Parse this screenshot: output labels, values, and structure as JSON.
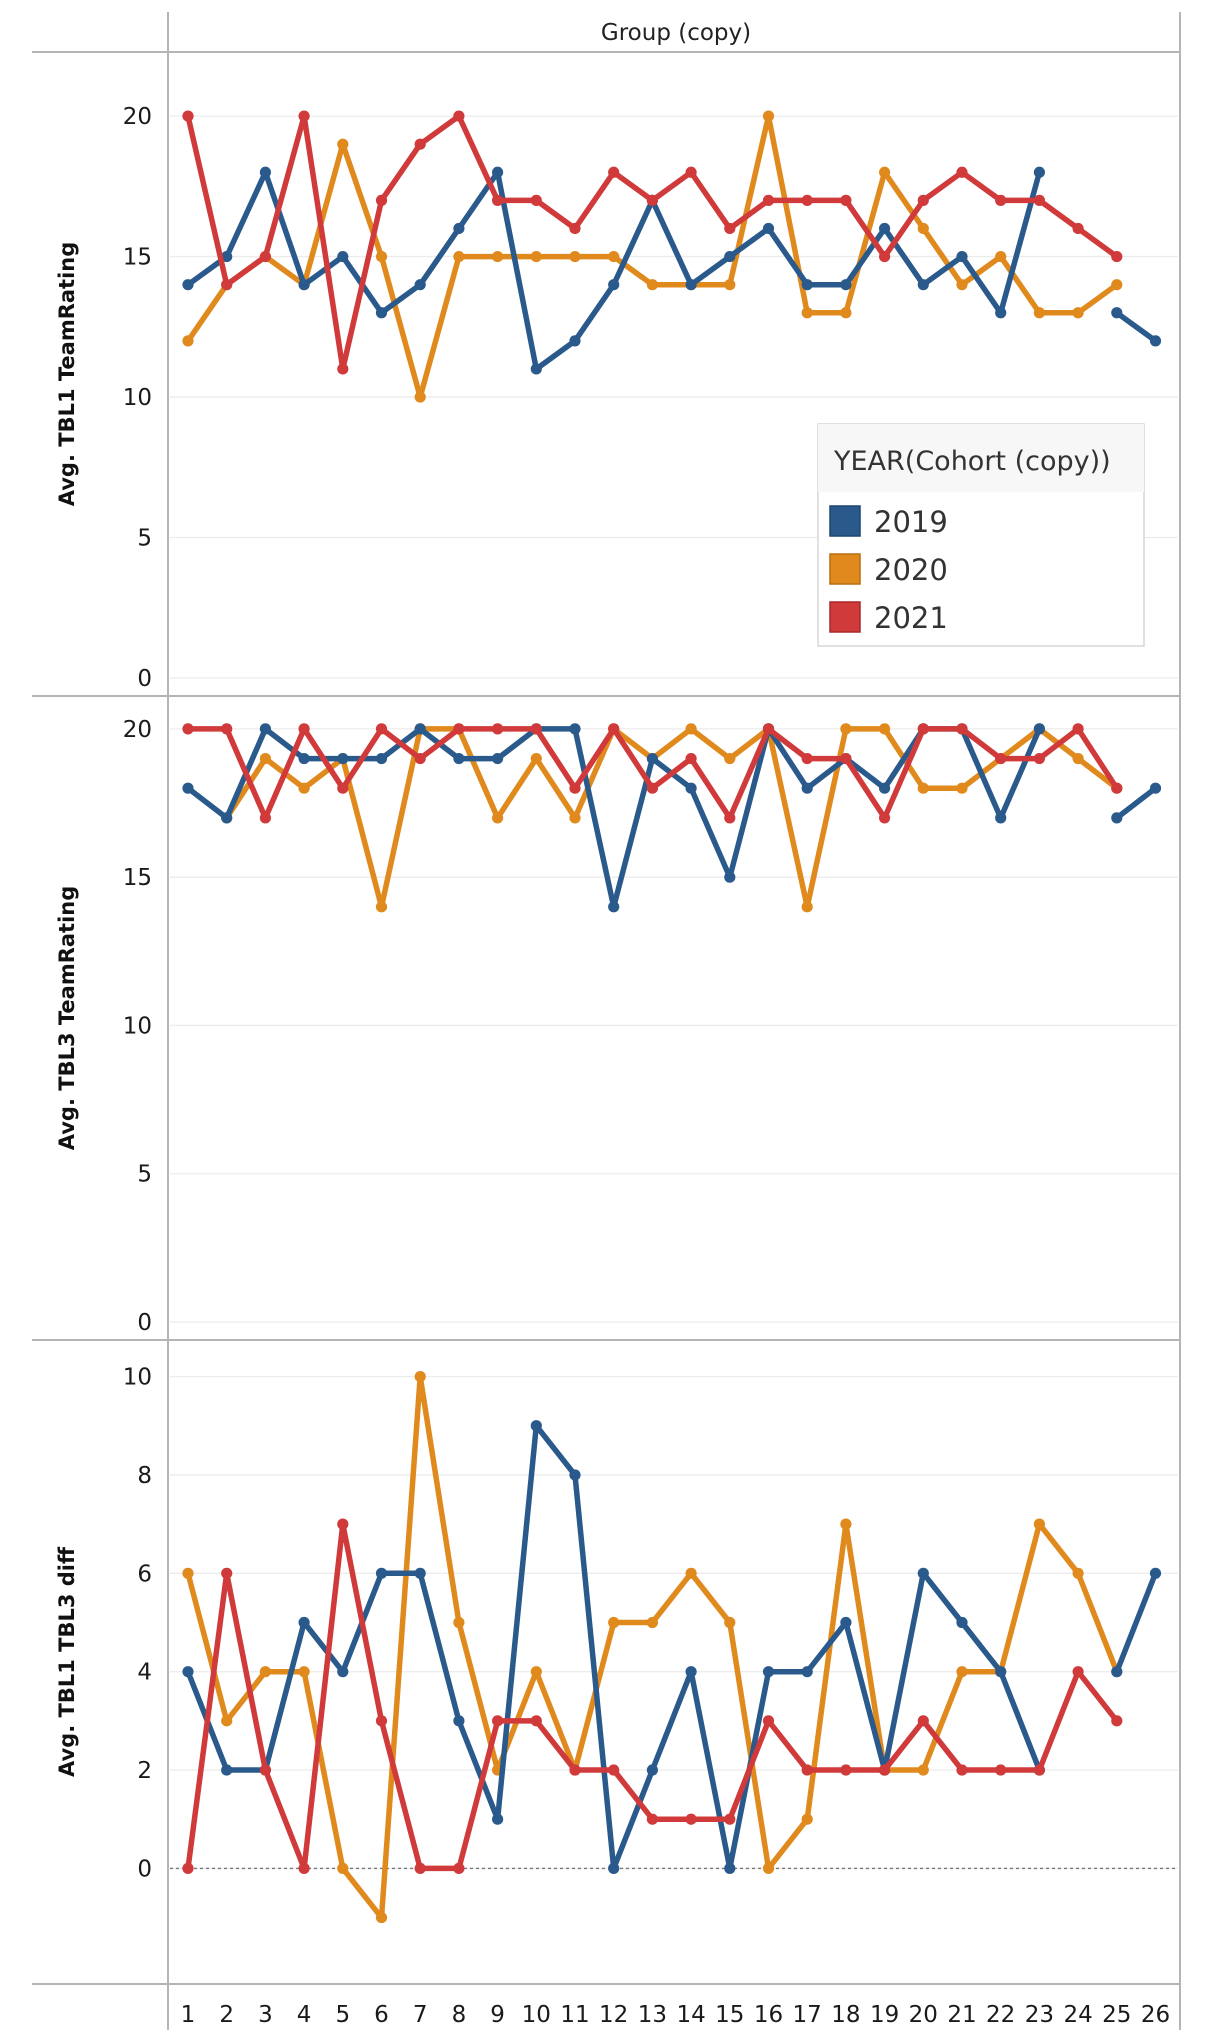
{
  "header": {
    "column_title": "Group (copy)"
  },
  "colors": {
    "2019": "#2a5a8c",
    "2020": "#e08a1e",
    "2021": "#d03a3a"
  },
  "chart_data": [
    {
      "type": "line",
      "ylabel": "Avg. TBL1 TeamRating",
      "ylim": [
        0,
        21
      ],
      "yticks": [
        0,
        5,
        10,
        15,
        20
      ],
      "x": [
        1,
        2,
        3,
        4,
        5,
        6,
        7,
        8,
        9,
        10,
        11,
        12,
        13,
        14,
        15,
        16,
        17,
        18,
        19,
        20,
        21,
        22,
        23,
        24,
        25,
        26
      ],
      "series": [
        {
          "name": "2019",
          "values": [
            14,
            15,
            18,
            14,
            15,
            13,
            14,
            16,
            18,
            11,
            12,
            14,
            17,
            14,
            15,
            16,
            14,
            14,
            16,
            14,
            15,
            13,
            18,
            null,
            13,
            12
          ]
        },
        {
          "name": "2020",
          "values": [
            12,
            14,
            15,
            14,
            19,
            15,
            10,
            15,
            15,
            15,
            15,
            15,
            14,
            14,
            14,
            20,
            13,
            13,
            18,
            16,
            14,
            15,
            13,
            13,
            14,
            null
          ]
        },
        {
          "name": "2021",
          "values": [
            20,
            14,
            15,
            20,
            11,
            17,
            19,
            20,
            17,
            17,
            16,
            18,
            17,
            18,
            16,
            17,
            17,
            17,
            15,
            17,
            18,
            17,
            17,
            16,
            15,
            null
          ]
        }
      ],
      "legend": {
        "title": "YEAR(Cohort (copy))",
        "entries": [
          "2019",
          "2020",
          "2021"
        ]
      }
    },
    {
      "type": "line",
      "ylabel": "Avg. TBL3 TeamRating",
      "ylim": [
        0,
        20.3
      ],
      "yticks": [
        0,
        5,
        10,
        15,
        20
      ],
      "x": [
        1,
        2,
        3,
        4,
        5,
        6,
        7,
        8,
        9,
        10,
        11,
        12,
        13,
        14,
        15,
        16,
        17,
        18,
        19,
        20,
        21,
        22,
        23,
        24,
        25,
        26
      ],
      "series": [
        {
          "name": "2019",
          "values": [
            18,
            17,
            20,
            19,
            19,
            19,
            20,
            19,
            19,
            20,
            20,
            14,
            19,
            18,
            15,
            20,
            18,
            19,
            18,
            20,
            20,
            17,
            20,
            null,
            17,
            18
          ]
        },
        {
          "name": "2020",
          "values": [
            null,
            17,
            19,
            18,
            19,
            14,
            20,
            20,
            17,
            19,
            17,
            20,
            19,
            20,
            19,
            20,
            14,
            20,
            20,
            18,
            18,
            19,
            20,
            19,
            18,
            null
          ]
        },
        {
          "name": "2021",
          "values": [
            20,
            20,
            17,
            20,
            18,
            20,
            19,
            20,
            20,
            20,
            18,
            20,
            18,
            19,
            17,
            20,
            19,
            19,
            17,
            20,
            20,
            19,
            19,
            20,
            18,
            null
          ]
        }
      ]
    },
    {
      "type": "line",
      "ylabel": "Avg. TBL1 TBL3 diff",
      "ylim": [
        -1.7,
        10.5
      ],
      "yticks": [
        0,
        2,
        4,
        6,
        8,
        10
      ],
      "zero_line": true,
      "x": [
        1,
        2,
        3,
        4,
        5,
        6,
        7,
        8,
        9,
        10,
        11,
        12,
        13,
        14,
        15,
        16,
        17,
        18,
        19,
        20,
        21,
        22,
        23,
        24,
        25,
        26
      ],
      "series": [
        {
          "name": "2019",
          "values": [
            4,
            2,
            2,
            5,
            4,
            6,
            6,
            3,
            1,
            9,
            8,
            0,
            2,
            4,
            0,
            4,
            4,
            5,
            2,
            6,
            5,
            4,
            2,
            null,
            4,
            6
          ]
        },
        {
          "name": "2020",
          "values": [
            6,
            3,
            4,
            4,
            0,
            -1,
            10,
            5,
            2,
            4,
            2,
            5,
            5,
            6,
            5,
            0,
            1,
            7,
            2,
            2,
            4,
            4,
            7,
            6,
            4,
            null
          ]
        },
        {
          "name": "2021",
          "values": [
            0,
            6,
            2,
            0,
            7,
            3,
            0,
            0,
            3,
            3,
            2,
            2,
            1,
            1,
            1,
            3,
            2,
            2,
            2,
            3,
            2,
            2,
            2,
            4,
            3,
            null
          ]
        }
      ]
    }
  ]
}
